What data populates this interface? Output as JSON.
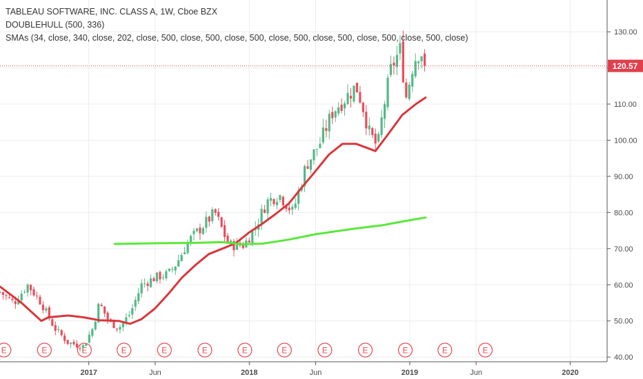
{
  "legend": {
    "title": "TABLEAU SOFTWARE, INC. CLASS A, 1W, Cboe BZX",
    "indicator1": "DOUBLEHULL (500, 336)",
    "indicator2": "SMAs (34, close, 340, close, 202, close, 500, close, 500, close, 500, close, 500, close, 500, close, 500, close, 500, close)"
  },
  "colors": {
    "up": "#53b987",
    "down": "#eb4d5c",
    "sma_red": "#d9363b",
    "sma_green": "#59e83a",
    "grid": "#ececec",
    "axis_text": "#4a4a4a",
    "price_label_bg": "#e0404c",
    "earnings": "#e8474f"
  },
  "chart_data": {
    "type": "candlestick",
    "x_axis": {
      "tick_labels": [
        "2017",
        "Jun",
        "2018",
        "Jun",
        "2019",
        "Jun",
        "2020"
      ],
      "tick_dates": [
        "2017-01-01",
        "2017-06-01",
        "2018-01-01",
        "2018-06-01",
        "2019-01-01",
        "2019-06-01",
        "2020-01-01"
      ],
      "range": [
        "2016-06-13",
        "2020-03-25"
      ]
    },
    "y_axis": {
      "tick_labels": [
        "40.00",
        "50.00",
        "60.00",
        "70.00",
        "80.00",
        "90.00",
        "100.00",
        "110.00",
        "120.00",
        "130.00"
      ],
      "ticks": [
        40,
        50,
        60,
        70,
        80,
        90,
        100,
        110,
        120,
        130
      ],
      "range": [
        38.7,
        138.8
      ],
      "position": "right"
    },
    "last_price": {
      "value": 120.57,
      "label": "120.57"
    },
    "earnings_marker_label": "E",
    "earnings_dates": [
      "2016-06-22",
      "2016-09-22",
      "2016-12-22",
      "2017-03-22",
      "2017-06-22",
      "2017-09-22",
      "2017-12-22",
      "2018-03-22",
      "2018-06-22",
      "2018-09-22",
      "2018-12-22",
      "2019-03-22",
      "2019-06-22"
    ],
    "price_path": [
      [
        "2016-06-13",
        58
      ],
      [
        "2016-07-15",
        55
      ],
      [
        "2016-08-15",
        60
      ],
      [
        "2016-09-15",
        55
      ],
      [
        "2016-10-15",
        48
      ],
      [
        "2016-11-15",
        44
      ],
      [
        "2016-12-20",
        43
      ],
      [
        "2017-01-10",
        48
      ],
      [
        "2017-01-25",
        55
      ],
      [
        "2017-02-15",
        50
      ],
      [
        "2017-03-10",
        48
      ],
      [
        "2017-04-05",
        52
      ],
      [
        "2017-05-01",
        60
      ],
      [
        "2017-06-01",
        62
      ],
      [
        "2017-07-01",
        63
      ],
      [
        "2017-07-20",
        66
      ],
      [
        "2017-08-15",
        72
      ],
      [
        "2017-09-15",
        76
      ],
      [
        "2017-10-15",
        80
      ],
      [
        "2017-11-15",
        71
      ],
      [
        "2017-12-20",
        71
      ],
      [
        "2018-01-15",
        76
      ],
      [
        "2018-02-10",
        83
      ],
      [
        "2018-03-10",
        85
      ],
      [
        "2018-04-10",
        80
      ],
      [
        "2018-05-10",
        93
      ],
      [
        "2018-06-10",
        99
      ],
      [
        "2018-07-10",
        108
      ],
      [
        "2018-08-10",
        112
      ],
      [
        "2018-09-01",
        115
      ],
      [
        "2018-09-15",
        110
      ],
      [
        "2018-10-01",
        102
      ],
      [
        "2018-10-20",
        98
      ],
      [
        "2018-11-01",
        108
      ],
      [
        "2018-11-20",
        120
      ],
      [
        "2018-12-10",
        125
      ],
      [
        "2018-12-24",
        112
      ],
      [
        "2019-01-10",
        122
      ],
      [
        "2019-01-25",
        125
      ],
      [
        "2019-02-08",
        121
      ]
    ],
    "series": [
      {
        "name": "SMA 34",
        "color": "#d9363b",
        "points": [
          [
            "2016-06-13",
            59.5
          ],
          [
            "2016-08-01",
            55
          ],
          [
            "2016-09-15",
            50
          ],
          [
            "2016-10-01",
            51
          ],
          [
            "2016-11-15",
            51.5
          ],
          [
            "2016-12-20",
            51
          ],
          [
            "2017-01-25",
            50.2
          ],
          [
            "2017-03-10",
            50
          ],
          [
            "2017-04-05",
            49.2
          ],
          [
            "2017-05-01",
            50.5
          ],
          [
            "2017-06-01",
            53.5
          ],
          [
            "2017-07-01",
            57.5
          ],
          [
            "2017-08-01",
            62
          ],
          [
            "2017-09-01",
            65.5
          ],
          [
            "2017-10-01",
            68.5
          ],
          [
            "2017-11-01",
            70
          ],
          [
            "2017-12-01",
            71.5
          ],
          [
            "2018-01-01",
            74.5
          ],
          [
            "2018-02-01",
            77
          ],
          [
            "2018-03-01",
            79.5
          ],
          [
            "2018-04-01",
            82.5
          ],
          [
            "2018-05-01",
            87
          ],
          [
            "2018-06-01",
            91.5
          ],
          [
            "2018-07-01",
            96
          ],
          [
            "2018-08-01",
            99
          ],
          [
            "2018-09-01",
            99
          ],
          [
            "2018-10-15",
            97
          ],
          [
            "2018-11-15",
            102
          ],
          [
            "2018-12-15",
            107
          ],
          [
            "2019-01-15",
            110
          ],
          [
            "2019-02-06",
            111.8
          ]
        ]
      },
      {
        "name": "SMA 500",
        "color": "#59e83a",
        "points": [
          [
            "2017-03-01",
            71.3
          ],
          [
            "2017-06-01",
            71.5
          ],
          [
            "2017-09-01",
            71.6
          ],
          [
            "2017-11-01",
            71.8
          ],
          [
            "2017-12-15",
            71.2
          ],
          [
            "2018-02-01",
            71.4
          ],
          [
            "2018-04-01",
            72.5
          ],
          [
            "2018-06-01",
            74
          ],
          [
            "2018-09-01",
            75.6
          ],
          [
            "2018-11-01",
            76.5
          ],
          [
            "2018-12-15",
            77.5
          ],
          [
            "2019-02-06",
            78.6
          ]
        ]
      }
    ],
    "grid": true
  }
}
